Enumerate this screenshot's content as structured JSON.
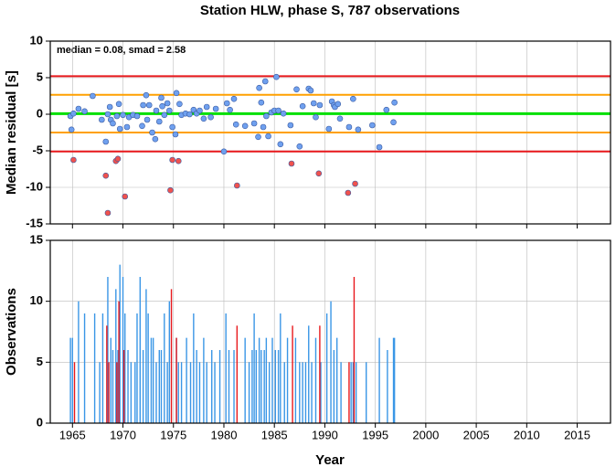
{
  "chart_data": [
    {
      "type": "scatter",
      "title": "Station HLW, phase S, 787 observations",
      "ylabel": "Median residual [s]",
      "annotation": "median = 0.08, smad = 2.58",
      "xlim": [
        1962.8,
        2018.3
      ],
      "xticks": [
        1965,
        1970,
        1975,
        1980,
        1985,
        1990,
        1995,
        2000,
        2005,
        2010,
        2015
      ],
      "ylim": [
        -15,
        10
      ],
      "yticks": [
        -15,
        -10,
        -5,
        0,
        5,
        10
      ],
      "grid": true,
      "reference_lines": [
        {
          "value": 5.2,
          "color": "#e8181c"
        },
        {
          "value": 2.66,
          "color": "#ffa000"
        },
        {
          "value": 0.08,
          "color": "#00e000"
        },
        {
          "value": -2.5,
          "color": "#ffa000"
        },
        {
          "value": -5.1,
          "color": "#e8181c"
        }
      ],
      "series": [
        {
          "color": "#6fa0ef",
          "x": [
            1964.8,
            1964.9,
            1965.1,
            1965.6,
            1966.2,
            1967,
            1967.9,
            1968.3,
            1968.5,
            1968.7,
            1968.8,
            1969,
            1969.4,
            1969.6,
            1969.7,
            1970,
            1970.4,
            1970.6,
            1971,
            1971.4,
            1971.9,
            1972,
            1972.3,
            1972.4,
            1972.6,
            1972.9,
            1973.2,
            1973.3,
            1973.6,
            1973.8,
            1973.9,
            1974.1,
            1974.4,
            1974.6,
            1974.9,
            1975.2,
            1975.3,
            1975.6,
            1975.8,
            1976.2,
            1976.6,
            1977,
            1977.3,
            1977.6,
            1978,
            1978.3,
            1978.7,
            1979.2,
            1980,
            1980.3,
            1980.6,
            1981,
            1981.2,
            1982.1,
            1983,
            1983.4,
            1983.5,
            1983.7,
            1983.9,
            1984.1,
            1984.2,
            1984.4,
            1984.7,
            1985,
            1985.2,
            1985.4,
            1985.6,
            1985.9,
            1986.6,
            1987.2,
            1987.5,
            1987.8,
            1988.4,
            1988.6,
            1988.9,
            1989.1,
            1989.5,
            1990.4,
            1990.7,
            1990.9,
            1991,
            1991.3,
            1991.5,
            1992.4,
            1992.8,
            1993.3,
            1994.7,
            1995.4,
            1996.1,
            1996.8,
            1996.9
          ],
          "values": [
            -0.25,
            -2.1,
            0.1,
            0.75,
            0.4,
            2.5,
            -0.75,
            -3.75,
            0,
            1,
            -0.75,
            -1.25,
            -0.25,
            1.4,
            -2,
            -0.1,
            -1.75,
            -0.4,
            -0.1,
            -0.25,
            -1.6,
            1.25,
            2.6,
            -0.75,
            1.25,
            -2.5,
            -3.4,
            0.5,
            -1,
            2.25,
            1.1,
            -0.1,
            1.5,
            0.5,
            -1.75,
            -2.75,
            2.9,
            1.4,
            -0.1,
            0.1,
            0,
            0.6,
            0.1,
            0.5,
            -0.6,
            1,
            -0.4,
            0.75,
            -5.1,
            1.5,
            0.6,
            2.1,
            -1.4,
            -1.6,
            -1.25,
            -3.1,
            3.6,
            1.6,
            -1.75,
            4.5,
            -0.25,
            -3,
            0.25,
            0.5,
            5.1,
            0.5,
            -4.1,
            0.1,
            -1.5,
            3.4,
            -4.4,
            1.1,
            3.5,
            3.25,
            1.5,
            -0.4,
            1.25,
            -2,
            1.75,
            1.25,
            1,
            1.4,
            -0.6,
            -1.75,
            2.1,
            -2.1,
            -1.5,
            -4.5,
            0.6,
            -1.1,
            1.6
          ]
        },
        {
          "color": "#f0524e",
          "x": [
            1965.1,
            1968.3,
            1968.5,
            1969.3,
            1969.5,
            1970.2,
            1974.7,
            1974.9,
            1975.5,
            1981.3,
            1986.7,
            1989.4,
            1992.3,
            1993
          ],
          "values": [
            -6.25,
            -8.4,
            -13.5,
            -6.4,
            -6.1,
            -11.25,
            -10.4,
            -6.25,
            -6.4,
            -9.75,
            -6.75,
            -8.1,
            -10.75,
            -9.5
          ]
        }
      ]
    },
    {
      "type": "bar",
      "xlabel": "Year",
      "ylabel": "Observations",
      "xlim": [
        1962.8,
        2018.3
      ],
      "xticks": [
        1965,
        1970,
        1975,
        1980,
        1985,
        1990,
        1995,
        2000,
        2005,
        2010,
        2015
      ],
      "ylim": [
        0,
        15
      ],
      "yticks": [
        0,
        5,
        10,
        15
      ],
      "grid": true,
      "series": [
        {
          "color": "#3a96e6",
          "x": [
            1964.8,
            1965,
            1965.6,
            1966.2,
            1967.2,
            1967.7,
            1968,
            1968.5,
            1968.8,
            1969,
            1969.3,
            1969.5,
            1969.7,
            1970,
            1970.2,
            1970.5,
            1970.8,
            1971.2,
            1971.4,
            1971.7,
            1972,
            1972.3,
            1972.5,
            1972.8,
            1973,
            1973.3,
            1973.6,
            1973.8,
            1974.1,
            1974.4,
            1974.6,
            1975.3,
            1975.5,
            1975.8,
            1976.3,
            1976.7,
            1977,
            1977.3,
            1977.6,
            1978,
            1978.3,
            1978.8,
            1979.1,
            1979.6,
            1980.2,
            1980.5,
            1981,
            1982.1,
            1982.5,
            1982.8,
            1983,
            1983.2,
            1983.5,
            1983.7,
            1984,
            1984.2,
            1984.5,
            1984.8,
            1985.1,
            1985.4,
            1985.6,
            1986,
            1986.3,
            1987.1,
            1987.5,
            1987.8,
            1988.1,
            1988.4,
            1988.7,
            1989.1,
            1989.6,
            1990.2,
            1990.6,
            1990.9,
            1991.2,
            1991.6,
            1992.6,
            1992.8,
            1993.1,
            1994.1,
            1995.4,
            1996.2,
            1996.8,
            1996.9
          ],
          "values": [
            7,
            7,
            10,
            9,
            9,
            5,
            9,
            12,
            7,
            6,
            11,
            6,
            13,
            12,
            9,
            6,
            5,
            5,
            9,
            12,
            6,
            11,
            9,
            7,
            7,
            5,
            6,
            6,
            9,
            5,
            10,
            7,
            5,
            5,
            7,
            5,
            9,
            6,
            5,
            7,
            5,
            6,
            5,
            6,
            9,
            6,
            6,
            7,
            5,
            6,
            9,
            6,
            7,
            6,
            6,
            7,
            5,
            7,
            6,
            6,
            9,
            5,
            7,
            7,
            5,
            5,
            5,
            8,
            5,
            7,
            5,
            9,
            10,
            6,
            7,
            5,
            5,
            5,
            5,
            5,
            7,
            6,
            7,
            7
          ]
        },
        {
          "color": "#e8181c",
          "x": [
            1965.2,
            1968.4,
            1968.6,
            1969.4,
            1969.6,
            1970.1,
            1974.8,
            1975.3,
            1981.3,
            1986.8,
            1989.5,
            1992.4,
            1992.9
          ],
          "values": [
            5,
            8,
            5,
            5,
            10,
            6,
            11,
            7,
            8,
            8,
            8,
            5,
            12
          ]
        }
      ]
    }
  ]
}
